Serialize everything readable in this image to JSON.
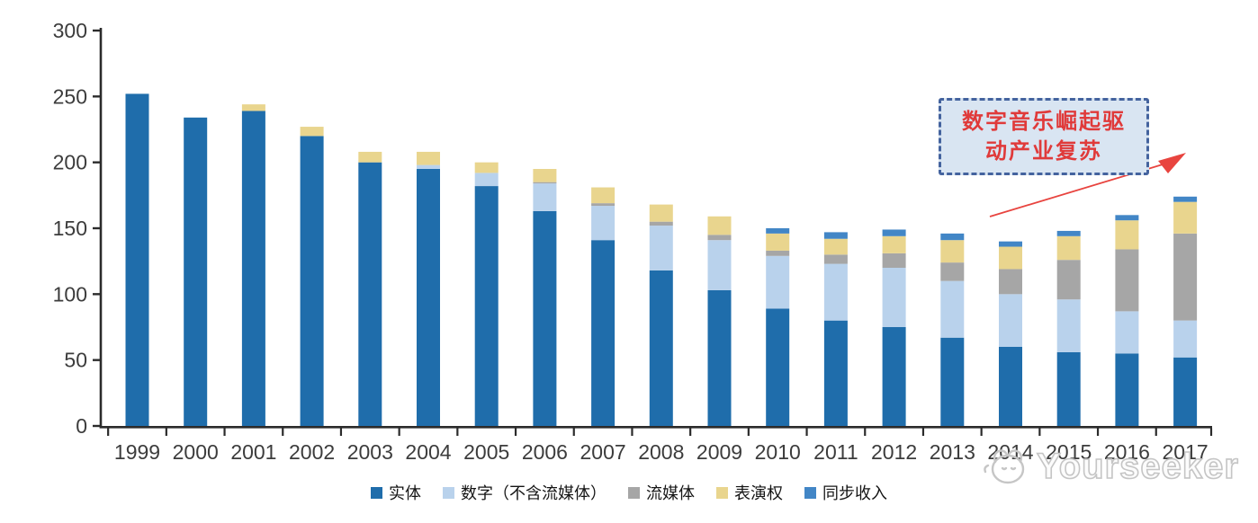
{
  "chart_data": {
    "type": "bar",
    "stacked": true,
    "title": "",
    "xlabel": "",
    "ylabel": "",
    "categories": [
      "1999",
      "2000",
      "2001",
      "2002",
      "2003",
      "2004",
      "2005",
      "2006",
      "2007",
      "2008",
      "2009",
      "2010",
      "2011",
      "2012",
      "2013",
      "2014",
      "2015",
      "2016",
      "2017"
    ],
    "series": [
      {
        "name": "实体",
        "color": "#1F6DAB",
        "values": [
          252,
          234,
          239,
          220,
          200,
          195,
          182,
          163,
          141,
          118,
          103,
          89,
          80,
          75,
          67,
          60,
          56,
          55,
          52
        ]
      },
      {
        "name": "数字（不含流媒体）",
        "color": "#B9D2EC",
        "values": [
          0,
          0,
          0,
          0,
          0,
          3,
          10,
          21,
          26,
          34,
          38,
          40,
          43,
          45,
          43,
          40,
          40,
          32,
          28
        ]
      },
      {
        "name": "流媒体",
        "color": "#A6A6A6",
        "values": [
          0,
          0,
          0,
          0,
          0,
          0,
          0,
          1,
          2,
          3,
          4,
          4,
          7,
          11,
          14,
          19,
          30,
          47,
          66
        ]
      },
      {
        "name": "表演权",
        "color": "#E9D58E",
        "values": [
          0,
          0,
          5,
          7,
          8,
          10,
          8,
          10,
          12,
          13,
          14,
          13,
          12,
          13,
          17,
          17,
          18,
          22,
          24
        ]
      },
      {
        "name": "同步收入",
        "color": "#4286C6",
        "values": [
          0,
          0,
          0,
          0,
          0,
          0,
          0,
          0,
          0,
          0,
          0,
          4,
          5,
          5,
          5,
          4,
          4,
          4,
          4
        ]
      }
    ],
    "ylim": [
      0,
      300
    ],
    "yticks": [
      0,
      50,
      100,
      150,
      200,
      250,
      300
    ],
    "grid": false,
    "legend_position": "bottom"
  },
  "annotation": {
    "line1": "数字音乐崛起驱",
    "line2": "动产业复苏"
  },
  "watermark": {
    "brand": "Yourseeker"
  },
  "colors": {
    "axis": "#2b2b2b",
    "tick_label": "#3c3c3c",
    "annotation_bg": "#D9E5F2",
    "annotation_border": "#44639E",
    "annotation_text": "#E03A3A",
    "arrow": "#E8443F",
    "watermark": "#c5c5c5"
  }
}
